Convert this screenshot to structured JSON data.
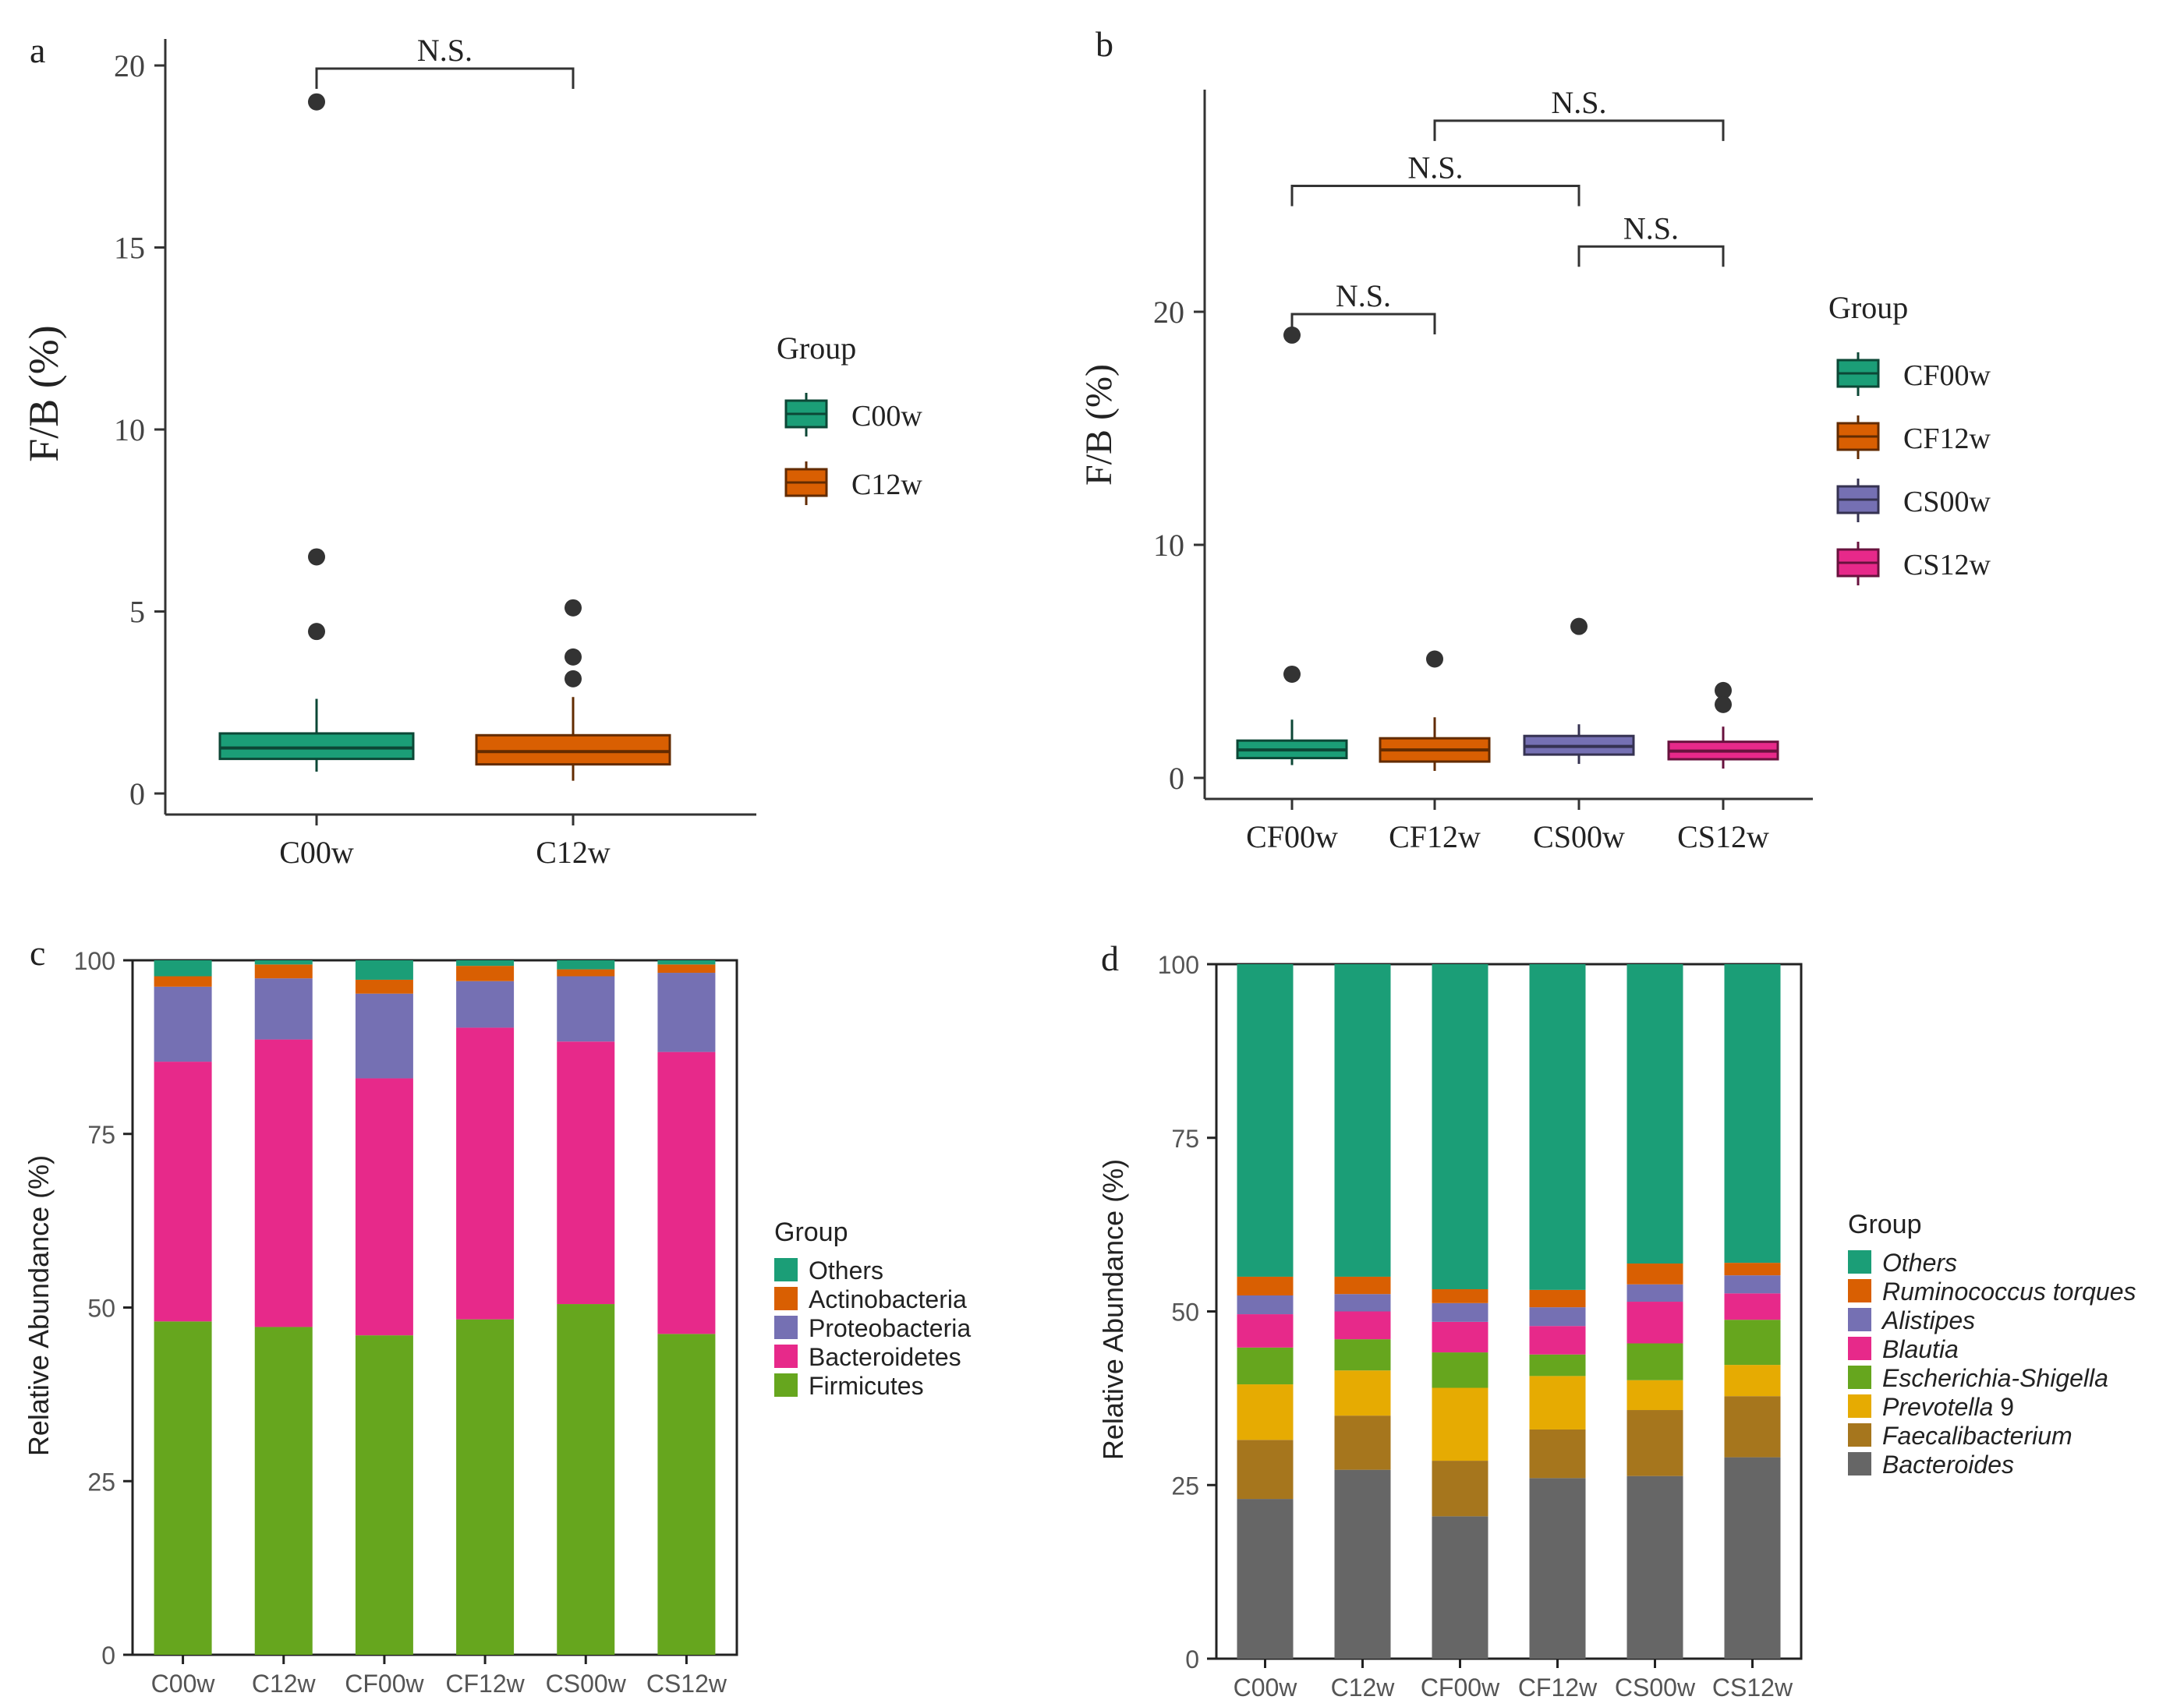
{
  "chart_data": [
    {
      "panel": "a",
      "type": "box",
      "ylabel": "F/B (%)",
      "ylim": [
        0,
        20
      ],
      "yticks": [
        "0",
        "5",
        "10",
        "15",
        "20"
      ],
      "categories": [
        "C00w",
        "C12w"
      ],
      "legend_title": "Group",
      "legend": [
        "C00w",
        "C12w"
      ],
      "colors": [
        "#1b9e77",
        "#d95f02"
      ],
      "boxes": [
        {
          "q1": 0.95,
          "median": 1.25,
          "q3": 1.65,
          "whisker_low": 0.6,
          "whisker_high": 2.6,
          "outliers": [
            19.0,
            6.5,
            4.45
          ]
        },
        {
          "q1": 0.8,
          "median": 1.15,
          "q3": 1.6,
          "whisker_low": 0.35,
          "whisker_high": 2.65,
          "outliers": [
            5.1,
            3.75,
            3.15
          ]
        }
      ],
      "significance": [
        {
          "from": 0,
          "to": 1,
          "label": "N.S."
        }
      ]
    },
    {
      "panel": "b",
      "type": "box",
      "ylabel": "F/B (%)",
      "ylim": [
        0,
        30
      ],
      "yticks": [
        "0",
        "10",
        "20"
      ],
      "categories": [
        "CF00w",
        "CF12w",
        "CS00w",
        "CS12w"
      ],
      "legend_title": "Group",
      "legend": [
        "CF00w",
        "CF12w",
        "CS00w",
        "CS12w"
      ],
      "colors": [
        "#1b9e77",
        "#d95f02",
        "#7570b3",
        "#e7298a"
      ],
      "boxes": [
        {
          "q1": 0.85,
          "median": 1.2,
          "q3": 1.6,
          "whisker_low": 0.55,
          "whisker_high": 2.5,
          "outliers": [
            19.0,
            4.45
          ]
        },
        {
          "q1": 0.7,
          "median": 1.2,
          "q3": 1.7,
          "whisker_low": 0.3,
          "whisker_high": 2.6,
          "outliers": [
            5.1
          ]
        },
        {
          "q1": 1.0,
          "median": 1.35,
          "q3": 1.8,
          "whisker_low": 0.6,
          "whisker_high": 2.3,
          "outliers": [
            6.5
          ]
        },
        {
          "q1": 0.8,
          "median": 1.15,
          "q3": 1.55,
          "whisker_low": 0.4,
          "whisker_high": 2.2,
          "outliers": [
            3.75,
            3.15
          ]
        }
      ],
      "significance": [
        {
          "from": 0,
          "to": 1,
          "label": "N.S.",
          "level": 19.9
        },
        {
          "from": 2,
          "to": 3,
          "label": "N.S.",
          "level": 22.8
        },
        {
          "from": 0,
          "to": 2,
          "label": "N.S.",
          "level": 25.4
        },
        {
          "from": 1,
          "to": 3,
          "label": "N.S.",
          "level": 28.2
        }
      ]
    },
    {
      "panel": "c",
      "type": "bar",
      "stacked": true,
      "ylabel": "Relative Abundance (%)",
      "ylim": [
        0,
        100
      ],
      "yticks": [
        "0",
        "25",
        "50",
        "75",
        "100"
      ],
      "categories": [
        "C00w",
        "C12w",
        "CF00w",
        "CF12w",
        "CS00w",
        "CS12w"
      ],
      "legend_title": "Group",
      "series": [
        {
          "name": "Firmicutes",
          "color": "#66a61e",
          "values": [
            48,
            47.2,
            46,
            48.3,
            50.5,
            46.2
          ]
        },
        {
          "name": "Bacteroidetes",
          "color": "#e7298a",
          "values": [
            37.4,
            41.4,
            37,
            42,
            37.8,
            40.6
          ]
        },
        {
          "name": "Proteobacteria",
          "color": "#7570b3",
          "values": [
            10.8,
            8.8,
            12.2,
            6.7,
            9.4,
            11.4
          ]
        },
        {
          "name": "Actinobacteria",
          "color": "#d95f02",
          "values": [
            1.5,
            2,
            2,
            2.2,
            1,
            1.2
          ]
        },
        {
          "name": "Others",
          "color": "#1b9e77",
          "values": [
            2.3,
            0.6,
            2.8,
            0.8,
            1.3,
            0.6
          ]
        }
      ],
      "legend": [
        "Others",
        "Actinobacteria",
        "Proteobacteria",
        "Bacteroidetes",
        "Firmicutes"
      ]
    },
    {
      "panel": "d",
      "type": "bar",
      "stacked": true,
      "ylabel": "Relative Abundance (%)",
      "ylim": [
        0,
        100
      ],
      "yticks": [
        "0",
        "25",
        "50",
        "75",
        "100"
      ],
      "categories": [
        "C00w",
        "C12w",
        "CF00w",
        "CF12w",
        "CS00w",
        "CS12w"
      ],
      "legend_title": "Group",
      "series": [
        {
          "name": "Bacteroides",
          "italic": true,
          "suffix": "",
          "color": "#666666",
          "values": [
            23,
            27.2,
            20.5,
            26,
            26.3,
            29
          ]
        },
        {
          "name": "Faecalibacterium",
          "italic": true,
          "suffix": "",
          "color": "#a6761d",
          "values": [
            8.5,
            7.8,
            8,
            7,
            9.5,
            8.8
          ]
        },
        {
          "name": "Prevotella",
          "italic": true,
          "suffix": " 9",
          "color": "#e6ab02",
          "values": [
            8,
            6.5,
            10.5,
            7.7,
            4.3,
            4.5
          ]
        },
        {
          "name": "Escherichia-Shigella",
          "italic": true,
          "suffix": "",
          "color": "#66a61e",
          "values": [
            5.3,
            4.5,
            5.1,
            3.1,
            5.3,
            6.5
          ]
        },
        {
          "name": "Blautia",
          "italic": true,
          "suffix": "",
          "color": "#e7298a",
          "values": [
            4.8,
            4,
            4.4,
            4.1,
            6,
            3.8
          ]
        },
        {
          "name": "Alistipes",
          "italic": true,
          "suffix": "",
          "color": "#7570b3",
          "values": [
            2.7,
            2.5,
            2.7,
            2.7,
            2.5,
            2.6
          ]
        },
        {
          "name": "Ruminococcus torques",
          "italic": true,
          "suffix": "",
          "color": "#d95f02",
          "values": [
            2.7,
            2.5,
            2,
            2.5,
            3,
            1.8
          ]
        },
        {
          "name": "Others",
          "italic": true,
          "suffix": "",
          "color": "#1b9e77",
          "values": [
            45,
            45,
            46.8,
            46.9,
            43.1,
            43
          ]
        }
      ],
      "legend": [
        "Others",
        "Ruminococcus torques",
        "Alistipes",
        "Blautia",
        "Escherichia-Shigella",
        "Prevotella",
        "Faecalibacterium",
        "Bacteroides"
      ],
      "legend_suffix": [
        "",
        "",
        "",
        "",
        "",
        " 9",
        "",
        ""
      ]
    }
  ],
  "panel_labels": [
    "a",
    "b",
    "c",
    "d"
  ],
  "outlier_color": "#333333",
  "axis_color": "#333333",
  "text_color": "#222222"
}
